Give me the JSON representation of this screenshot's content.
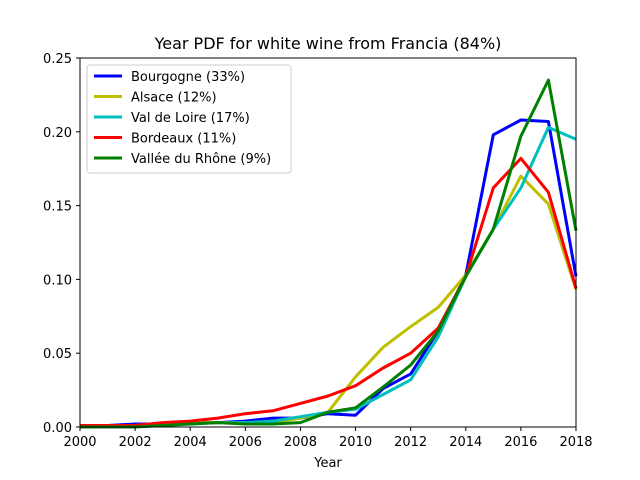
{
  "chart_data": {
    "type": "line",
    "title": "Year PDF for white wine from Francia (84%)",
    "xlabel": "Year",
    "ylabel": "",
    "xlim": [
      2000,
      2018
    ],
    "ylim": [
      0,
      0.25
    ],
    "xticks": [
      "2000",
      "2002",
      "2004",
      "2006",
      "2008",
      "2010",
      "2012",
      "2014",
      "2016",
      "2018"
    ],
    "yticks": [
      "0.00",
      "0.05",
      "0.10",
      "0.15",
      "0.20",
      "0.25"
    ],
    "legend_position": "top-left",
    "grid": false,
    "x": [
      2000,
      2001,
      2002,
      2003,
      2004,
      2005,
      2006,
      2007,
      2008,
      2009,
      2010,
      2011,
      2012,
      2013,
      2014,
      2015,
      2016,
      2017,
      2018
    ],
    "series": [
      {
        "name": "Bourgogne (33%)",
        "color": "#0000ff",
        "values": [
          0.001,
          0.001,
          0.002,
          0.002,
          0.003,
          0.003,
          0.004,
          0.006,
          0.006,
          0.009,
          0.008,
          0.026,
          0.036,
          0.065,
          0.103,
          0.198,
          0.208,
          0.207,
          0.102
        ]
      },
      {
        "name": "Alsace (12%)",
        "color": "#bfbf00",
        "values": [
          0.001,
          0.001,
          0.001,
          0.002,
          0.003,
          0.003,
          0.003,
          0.003,
          0.006,
          0.01,
          0.034,
          0.054,
          0.068,
          0.081,
          0.103,
          0.134,
          0.17,
          0.151,
          0.093
        ]
      },
      {
        "name": "Val de Loire (17%)",
        "color": "#00bfbf",
        "values": [
          0.001,
          0.001,
          0.001,
          0.002,
          0.002,
          0.003,
          0.003,
          0.004,
          0.007,
          0.01,
          0.012,
          0.022,
          0.032,
          0.061,
          0.102,
          0.134,
          0.162,
          0.203,
          0.195
        ]
      },
      {
        "name": "Bordeaux (11%)",
        "color": "#ff0000",
        "values": [
          0.001,
          0.001,
          0.001,
          0.003,
          0.004,
          0.006,
          0.009,
          0.011,
          0.016,
          0.021,
          0.028,
          0.04,
          0.05,
          0.067,
          0.102,
          0.162,
          0.182,
          0.159,
          0.094
        ]
      },
      {
        "name": "Vallée du Rhône (9%)",
        "color": "#008000",
        "values": [
          0.0,
          0.0,
          0.0,
          0.001,
          0.002,
          0.003,
          0.002,
          0.002,
          0.003,
          0.01,
          0.013,
          0.027,
          0.042,
          0.065,
          0.102,
          0.134,
          0.197,
          0.235,
          0.133
        ]
      }
    ]
  }
}
